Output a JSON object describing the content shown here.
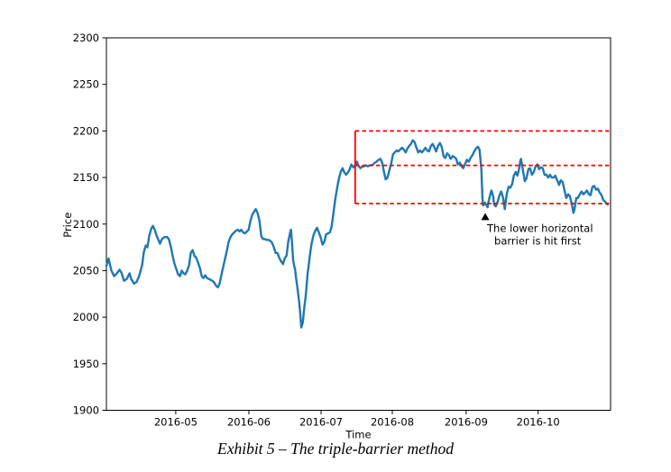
{
  "caption": "Exhibit 5 – The triple-barrier method",
  "colors": {
    "series": "#1f77b4",
    "barrier": "#ff0000",
    "axis": "#000000",
    "text": "#000000",
    "marker": "#000000",
    "background": "#ffffff"
  },
  "chart_data": {
    "type": "line",
    "title": "",
    "xlabel": "Time",
    "ylabel": "Price",
    "x_unit": "days since 2016-04-01",
    "xlim": [
      0,
      211.6
    ],
    "ylim": [
      1900,
      2300
    ],
    "grid": false,
    "legend_position": "none",
    "yticks": [
      1900,
      1950,
      2000,
      2050,
      2100,
      2150,
      2200,
      2250,
      2300
    ],
    "xticks": [
      {
        "day": 29.1,
        "label": "2016-05"
      },
      {
        "day": 59.8,
        "label": "2016-06"
      },
      {
        "day": 90.1,
        "label": "2016-07"
      },
      {
        "day": 120.0,
        "label": "2016-08"
      },
      {
        "day": 151.0,
        "label": "2016-09"
      },
      {
        "day": 181.2,
        "label": "2016-10"
      }
    ],
    "series": [
      {
        "name": "Price",
        "color": "#1f77b4",
        "line_width": 2.4,
        "points": [
          [
            0,
            2055
          ],
          [
            0.9,
            2063
          ],
          [
            2.1,
            2050
          ],
          [
            3.2,
            2044
          ],
          [
            4.4,
            2047
          ],
          [
            5.5,
            2051
          ],
          [
            6.3,
            2048
          ],
          [
            7.4,
            2039
          ],
          [
            8.5,
            2041
          ],
          [
            9.7,
            2047
          ],
          [
            10.4,
            2041
          ],
          [
            11.6,
            2036
          ],
          [
            12.7,
            2038
          ],
          [
            13.8,
            2045
          ],
          [
            15,
            2056
          ],
          [
            15.7,
            2070
          ],
          [
            16.5,
            2077
          ],
          [
            17.2,
            2075
          ],
          [
            18,
            2088
          ],
          [
            18.8,
            2095
          ],
          [
            19.5,
            2098
          ],
          [
            20.3,
            2094
          ],
          [
            21,
            2088
          ],
          [
            21.8,
            2083
          ],
          [
            22.5,
            2079
          ],
          [
            23.3,
            2084
          ],
          [
            24.4,
            2086
          ],
          [
            25.6,
            2086
          ],
          [
            26.3,
            2083
          ],
          [
            27.1,
            2075
          ],
          [
            27.8,
            2066
          ],
          [
            28.6,
            2057
          ],
          [
            29.4,
            2051
          ],
          [
            30.1,
            2046
          ],
          [
            30.9,
            2044
          ],
          [
            31.6,
            2050
          ],
          [
            32.4,
            2047
          ],
          [
            33.1,
            2046
          ],
          [
            33.9,
            2050
          ],
          [
            34.7,
            2056
          ],
          [
            35.4,
            2069
          ],
          [
            36.2,
            2072
          ],
          [
            36.9,
            2066
          ],
          [
            37.7,
            2064
          ],
          [
            38.4,
            2059
          ],
          [
            39.2,
            2053
          ],
          [
            40,
            2044
          ],
          [
            40.7,
            2042
          ],
          [
            41.5,
            2045
          ],
          [
            42.2,
            2042
          ],
          [
            43,
            2041
          ],
          [
            43.8,
            2040
          ],
          [
            44.5,
            2039
          ],
          [
            45.3,
            2037
          ],
          [
            46,
            2034
          ],
          [
            46.8,
            2032
          ],
          [
            47.5,
            2036
          ],
          [
            48.3,
            2046
          ],
          [
            49.1,
            2055
          ],
          [
            49.8,
            2063
          ],
          [
            50.6,
            2072
          ],
          [
            51.3,
            2081
          ],
          [
            52.1,
            2086
          ],
          [
            52.8,
            2089
          ],
          [
            53.6,
            2091
          ],
          [
            54.4,
            2093
          ],
          [
            55.1,
            2094
          ],
          [
            55.9,
            2092
          ],
          [
            56.6,
            2094
          ],
          [
            57.4,
            2091
          ],
          [
            58.1,
            2090
          ],
          [
            58.9,
            2092
          ],
          [
            59.7,
            2094
          ],
          [
            60.4,
            2103
          ],
          [
            61.2,
            2110
          ],
          [
            61.9,
            2113
          ],
          [
            62.7,
            2116
          ],
          [
            63.4,
            2112
          ],
          [
            64.2,
            2104
          ],
          [
            65,
            2087
          ],
          [
            65.7,
            2084
          ],
          [
            66.5,
            2084
          ],
          [
            67.2,
            2083
          ],
          [
            68,
            2083
          ],
          [
            68.8,
            2082
          ],
          [
            69.5,
            2080
          ],
          [
            70.3,
            2075
          ],
          [
            71,
            2069
          ],
          [
            71.8,
            2069
          ],
          [
            72.5,
            2064
          ],
          [
            73.3,
            2060
          ],
          [
            74.1,
            2057
          ],
          [
            74.8,
            2063
          ],
          [
            75.6,
            2066
          ],
          [
            76.3,
            2081
          ],
          [
            77.1,
            2091
          ],
          [
            77.5,
            2094
          ],
          [
            78,
            2075
          ],
          [
            78.4,
            2061
          ],
          [
            78.8,
            2055
          ],
          [
            79.2,
            2051
          ],
          [
            79.6,
            2042
          ],
          [
            80.1,
            2033
          ],
          [
            80.8,
            2018
          ],
          [
            81.3,
            2005
          ],
          [
            81.8,
            1989
          ],
          [
            82.4,
            1994
          ],
          [
            82.8,
            2004
          ],
          [
            83.2,
            2014
          ],
          [
            83.6,
            2022
          ],
          [
            84,
            2033
          ],
          [
            84.4,
            2046
          ],
          [
            84.9,
            2056
          ],
          [
            85.3,
            2064
          ],
          [
            85.7,
            2072
          ],
          [
            86.2,
            2080
          ],
          [
            86.9,
            2088
          ],
          [
            87.7,
            2093
          ],
          [
            88.4,
            2096
          ],
          [
            89.2,
            2091
          ],
          [
            90,
            2085
          ],
          [
            90.7,
            2078
          ],
          [
            91.5,
            2081
          ],
          [
            92.2,
            2089
          ],
          [
            93,
            2090
          ],
          [
            93.8,
            2091
          ],
          [
            94.5,
            2097
          ],
          [
            95.3,
            2112
          ],
          [
            96,
            2126
          ],
          [
            96.8,
            2138
          ],
          [
            97.5,
            2148
          ],
          [
            98.3,
            2156
          ],
          [
            99.1,
            2160
          ],
          [
            99.8,
            2156
          ],
          [
            100.6,
            2153
          ],
          [
            101.3,
            2155
          ],
          [
            102.1,
            2159
          ],
          [
            102.8,
            2164
          ],
          [
            103.6,
            2161
          ],
          [
            104.4,
            2163
          ],
          [
            105.1,
            2167
          ],
          [
            105.9,
            2162
          ],
          [
            106.6,
            2160
          ],
          [
            107.4,
            2162
          ],
          [
            108.1,
            2162
          ],
          [
            108.9,
            2163
          ],
          [
            109.7,
            2162
          ],
          [
            110.4,
            2163
          ],
          [
            111.2,
            2163
          ],
          [
            111.9,
            2164
          ],
          [
            112.7,
            2166
          ],
          [
            113.4,
            2167
          ],
          [
            114.2,
            2169
          ],
          [
            115,
            2170
          ],
          [
            115.7,
            2166
          ],
          [
            116.5,
            2156
          ],
          [
            117.2,
            2148
          ],
          [
            118,
            2150
          ],
          [
            118.8,
            2158
          ],
          [
            119.5,
            2165
          ],
          [
            120.3,
            2175
          ],
          [
            121,
            2177
          ],
          [
            121.8,
            2179
          ],
          [
            122.5,
            2178
          ],
          [
            123.3,
            2180
          ],
          [
            124.1,
            2182
          ],
          [
            124.8,
            2180
          ],
          [
            125.6,
            2177
          ],
          [
            126.3,
            2181
          ],
          [
            127.1,
            2184
          ],
          [
            127.8,
            2186
          ],
          [
            128.6,
            2190
          ],
          [
            129.4,
            2188
          ],
          [
            130.1,
            2182
          ],
          [
            130.9,
            2177
          ],
          [
            131.6,
            2179
          ],
          [
            132.4,
            2177
          ],
          [
            133.1,
            2179
          ],
          [
            133.9,
            2182
          ],
          [
            134.7,
            2179
          ],
          [
            135.4,
            2178
          ],
          [
            136.2,
            2184
          ],
          [
            136.9,
            2186
          ],
          [
            137.7,
            2182
          ],
          [
            138.4,
            2178
          ],
          [
            139.2,
            2184
          ],
          [
            140,
            2187
          ],
          [
            140.7,
            2183
          ],
          [
            141.5,
            2173
          ],
          [
            142.2,
            2171
          ],
          [
            143,
            2176
          ],
          [
            143.8,
            2174
          ],
          [
            144.5,
            2170
          ],
          [
            145.3,
            2173
          ],
          [
            146,
            2172
          ],
          [
            146.8,
            2170
          ],
          [
            147.5,
            2164
          ],
          [
            148.3,
            2166
          ],
          [
            149.1,
            2162
          ],
          [
            149.8,
            2160
          ],
          [
            150.6,
            2165
          ],
          [
            151.3,
            2169
          ],
          [
            152.1,
            2167
          ],
          [
            152.8,
            2171
          ],
          [
            153.6,
            2174
          ],
          [
            154.4,
            2178
          ],
          [
            155.1,
            2181
          ],
          [
            155.9,
            2183
          ],
          [
            156.6,
            2180
          ],
          [
            157.4,
            2158
          ],
          [
            157.8,
            2128
          ],
          [
            158.1,
            2120
          ],
          [
            158.9,
            2123
          ],
          [
            159.3,
            2121
          ],
          [
            160,
            2118
          ],
          [
            160.4,
            2124
          ],
          [
            161.2,
            2133
          ],
          [
            161.6,
            2136
          ],
          [
            162.3,
            2130
          ],
          [
            162.7,
            2121
          ],
          [
            163.4,
            2119
          ],
          [
            164.2,
            2124
          ],
          [
            165,
            2131
          ],
          [
            165.7,
            2135
          ],
          [
            166.5,
            2128
          ],
          [
            167.2,
            2116
          ],
          [
            168,
            2132
          ],
          [
            168.8,
            2140
          ],
          [
            169.5,
            2139
          ],
          [
            170.3,
            2143
          ],
          [
            171,
            2152
          ],
          [
            171.8,
            2156
          ],
          [
            172.5,
            2152
          ],
          [
            173.3,
            2160
          ],
          [
            173.7,
            2168
          ],
          [
            174,
            2170
          ],
          [
            174.8,
            2158
          ],
          [
            175.6,
            2146
          ],
          [
            176.3,
            2149
          ],
          [
            177.1,
            2159
          ],
          [
            177.8,
            2160
          ],
          [
            178.6,
            2153
          ],
          [
            179.4,
            2156
          ],
          [
            180.1,
            2162
          ],
          [
            180.9,
            2164
          ],
          [
            181.6,
            2159
          ],
          [
            182.4,
            2161
          ],
          [
            183.1,
            2160
          ],
          [
            183.9,
            2153
          ],
          [
            184.7,
            2153
          ],
          [
            185.4,
            2150
          ],
          [
            186.2,
            2153
          ],
          [
            186.9,
            2150
          ],
          [
            187.7,
            2150
          ],
          [
            188.4,
            2152
          ],
          [
            189.2,
            2147
          ],
          [
            190,
            2142
          ],
          [
            190.7,
            2147
          ],
          [
            191.5,
            2145
          ],
          [
            192.2,
            2137
          ],
          [
            193,
            2128
          ],
          [
            193.8,
            2132
          ],
          [
            194.5,
            2130
          ],
          [
            195.3,
            2122
          ],
          [
            196,
            2112
          ],
          [
            196.4,
            2115
          ],
          [
            197.2,
            2128
          ],
          [
            197.9,
            2128
          ],
          [
            198.7,
            2132
          ],
          [
            199.4,
            2135
          ],
          [
            200.2,
            2132
          ],
          [
            201,
            2134
          ],
          [
            201.7,
            2136
          ],
          [
            202.5,
            2132
          ],
          [
            203.2,
            2131
          ],
          [
            204,
            2140
          ],
          [
            204.7,
            2141
          ],
          [
            205.5,
            2137
          ],
          [
            206.3,
            2138
          ],
          [
            207,
            2134
          ],
          [
            207.8,
            2131
          ],
          [
            208.5,
            2126
          ],
          [
            209.3,
            2124
          ],
          [
            210.4,
            2121
          ]
        ]
      }
    ],
    "triple_barrier": {
      "start_day": 104.4,
      "end_day": 211.6,
      "upper_barrier": 2200,
      "entry_level": 2163,
      "lower_barrier": 2122,
      "line_style": "dashed",
      "color": "#ff0000",
      "vertical_line": {
        "day": 104.4,
        "from_price": 2122,
        "to_price": 2200,
        "line_style": "solid"
      }
    },
    "annotation": {
      "marker": "up-triangle",
      "day": 159.0,
      "price": 2112,
      "lines": [
        "The lower horizontal",
        "barrier is hit first"
      ]
    }
  }
}
